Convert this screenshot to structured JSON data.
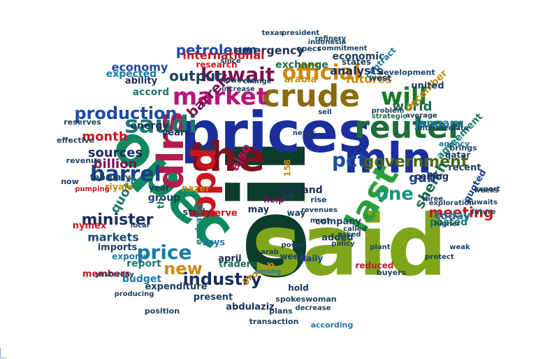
{
  "word_cloud": {
    "words": [
      {
        "text": "oil",
        "color": "#0b3d2a"
      },
      {
        "text": "said",
        "color": "#7fa61a"
      },
      {
        "text": "prices",
        "color": "#1a2e9c"
      },
      {
        "text": "opec",
        "color": "#0f8a5f"
      },
      {
        "text": "mln",
        "color": "#1a2e9c"
      },
      {
        "text": "the",
        "color": "#7a1020"
      },
      {
        "text": "crude",
        "color": "#8a6a10"
      },
      {
        "text": "reuter",
        "color": "#1f6b3a"
      },
      {
        "text": "dlrs",
        "color": "#b51a4c"
      },
      {
        "text": "last",
        "color": "#2aa03a"
      },
      {
        "text": "bpd",
        "color": "#c9151e"
      },
      {
        "text": "market",
        "color": "#b5167a"
      },
      {
        "text": "saudi",
        "color": "#1a7a6e"
      },
      {
        "text": "will",
        "color": "#1a7a2a"
      },
      {
        "text": "official",
        "color": "#c98a10"
      },
      {
        "text": "kuwait",
        "color": "#7a1050"
      },
      {
        "text": "barrel",
        "color": "#1a3f8a"
      },
      {
        "text": "production",
        "color": "#1a4aa6"
      },
      {
        "text": "one",
        "color": "#0f9a7a"
      },
      {
        "text": "pct",
        "color": "#1a4aa6"
      },
      {
        "text": "government",
        "color": "#4a6a10"
      },
      {
        "text": "price",
        "color": "#1a7aa6"
      },
      {
        "text": "new",
        "color": "#c98a10"
      },
      {
        "text": "barrels",
        "color": "#7a1050"
      },
      {
        "text": "minister",
        "color": "#1a2e5c"
      },
      {
        "text": "industry",
        "color": "#1a2e5c"
      },
      {
        "text": "petroleum",
        "color": "#1a4aa6"
      },
      {
        "text": "also",
        "color": "#a61a5a"
      },
      {
        "text": "meeting",
        "color": "#c9151e"
      },
      {
        "text": "sheikh",
        "color": "#1a6a4a"
      },
      {
        "text": "output",
        "color": "#1a3f5c"
      },
      {
        "text": "month",
        "color": "#c9151e"
      },
      {
        "text": "billion",
        "color": "#7a1050"
      },
      {
        "text": "sources",
        "color": "#1a2e5c"
      },
      {
        "text": "quota",
        "color": "#1a7a6e"
      },
      {
        "text": "today",
        "color": "#1a7aa6"
      },
      {
        "text": "markets",
        "color": "#1a4a6e"
      },
      {
        "text": "world",
        "color": "#1a6a4a"
      },
      {
        "text": "january",
        "color": "#1a7aa6"
      },
      {
        "text": "gulf",
        "color": "#1a3f8a"
      },
      {
        "text": "economy",
        "color": "#1a4aa6"
      },
      {
        "text": "futures",
        "color": "#c98a10"
      },
      {
        "text": "analysts",
        "color": "#1a2e5c"
      },
      {
        "text": "emergency",
        "color": "#1a2e5c"
      },
      {
        "text": "international",
        "color": "#c9151e"
      },
      {
        "text": "december",
        "color": "#c98a10"
      },
      {
        "text": "posted",
        "color": "#1a7a6e"
      },
      {
        "text": "report",
        "color": "#1a7a6e"
      },
      {
        "text": "group",
        "color": "#1a3f5c"
      },
      {
        "text": "budget",
        "color": "#1a7aa6"
      },
      {
        "text": "agreement",
        "color": "#1a7a6e"
      },
      {
        "text": "demand",
        "color": "#1a2e5c"
      },
      {
        "text": "nazer",
        "color": "#c98a10"
      },
      {
        "text": "traders",
        "color": "#1a6a4a"
      },
      {
        "text": "present",
        "color": "#1a3f5c"
      },
      {
        "text": "growth",
        "color": "#c98a10"
      },
      {
        "text": "april",
        "color": "#1a2e5c"
      },
      {
        "text": "abdulaziz",
        "color": "#1a2e5c"
      },
      {
        "text": "economic",
        "color": "#1a3f5c"
      },
      {
        "text": "energy",
        "color": "#1a2e5c"
      },
      {
        "text": "accord",
        "color": "#1a7a6e"
      },
      {
        "text": "expected",
        "color": "#1a7aa6"
      },
      {
        "text": "imports",
        "color": "#1a3f5c"
      },
      {
        "text": "members",
        "color": "#c9151e"
      },
      {
        "text": "exchange",
        "color": "#1a6a4a"
      },
      {
        "text": "years",
        "color": "#1a2e5c"
      },
      {
        "text": "ability",
        "color": "#1a2e5c"
      },
      {
        "text": "quoted",
        "color": "#1a3f8a"
      },
      {
        "text": "recent",
        "color": "#1a3f5c"
      },
      {
        "text": "united",
        "color": "#1a3f5c"
      },
      {
        "text": "arabia",
        "color": "#c98a10"
      },
      {
        "text": "research",
        "color": "#c9151e"
      },
      {
        "text": "exports",
        "color": "#1a7aa6"
      },
      {
        "text": "nymex",
        "color": "#c9151e"
      },
      {
        "text": "riyals",
        "color": "#c98a10"
      },
      {
        "text": "study",
        "color": "#1a3f5c"
      },
      {
        "text": "reserve",
        "color": "#c9151e"
      },
      {
        "text": "week",
        "color": "#1a3f5c"
      },
      {
        "text": "daily",
        "color": "#1a3f8a"
      },
      {
        "text": "added",
        "color": "#1a3f5c"
      },
      {
        "text": "company",
        "color": "#1a3f5c"
      },
      {
        "text": "hold",
        "color": "#1a2e5c"
      },
      {
        "text": "ceiling",
        "color": "#1a2e5c"
      },
      {
        "text": "expenditure",
        "color": "#1a3f5c"
      },
      {
        "text": "qatar",
        "color": "#1a3f5c"
      },
      {
        "text": "february",
        "color": "#1a3f5c"
      },
      {
        "text": "emirates",
        "color": "#1a7a6e"
      },
      {
        "text": "says",
        "color": "#1a7aa6"
      },
      {
        "text": "may",
        "color": "#1a2e5c"
      },
      {
        "text": "but",
        "color": "#1a3f5c"
      },
      {
        "text": "help",
        "color": "#7a1050"
      },
      {
        "text": "they",
        "color": "#1a7a6e"
      },
      {
        "text": "ali",
        "color": "#1a3f5c"
      },
      {
        "text": "year",
        "color": "#1a3f5c"
      },
      {
        "text": "158",
        "color": "#c98a10"
      },
      {
        "text": "way",
        "color": "#1a3f5c"
      },
      {
        "text": "rise",
        "color": "#1a3f5c"
      },
      {
        "text": "states",
        "color": "#1a3f5c"
      },
      {
        "text": "west",
        "color": "#1a3f5c"
      },
      {
        "text": "development",
        "color": "#1a3f5c"
      },
      {
        "text": "contract",
        "color": "#1a7aa6"
      },
      {
        "text": "agency",
        "color": "#1a7aa6"
      },
      {
        "text": "brings",
        "color": "#1a3f5c"
      },
      {
        "text": "revenue",
        "color": "#1a3f5c"
      },
      {
        "text": "reserves",
        "color": "#1a3f5c"
      },
      {
        "text": "effective",
        "color": "#1a3f5c"
      },
      {
        "text": "reduced",
        "color": "#c9151e"
      },
      {
        "text": "plans",
        "color": "#1a3f5c"
      },
      {
        "text": "transaction",
        "color": "#1a3f5c"
      },
      {
        "text": "spokeswoman",
        "color": "#1a3f5c"
      },
      {
        "text": "according",
        "color": "#1a7aa6"
      },
      {
        "text": "position",
        "color": "#1a3f5c"
      },
      {
        "text": "producing",
        "color": "#1a3f5c"
      },
      {
        "text": "power",
        "color": "#1a3f5c"
      },
      {
        "text": "buyers",
        "color": "#1a3f5c"
      },
      {
        "text": "opecs",
        "color": "#1a3f5c"
      },
      {
        "text": "exploration",
        "color": "#1a3f5c"
      },
      {
        "text": "problem",
        "color": "#1a3f5c"
      },
      {
        "text": "strategic",
        "color": "#1a6a4a"
      },
      {
        "text": "change",
        "color": "#1a3f5c"
      },
      {
        "text": "texas",
        "color": "#1a3f5c"
      },
      {
        "text": "president",
        "color": "#1a3f5c"
      },
      {
        "text": "refinery",
        "color": "#1a3f5c"
      },
      {
        "text": "indonesia",
        "color": "#1a3f5c"
      },
      {
        "text": "commitment",
        "color": "#1a3f5c"
      },
      {
        "text": "however",
        "color": "#1a3f5c"
      },
      {
        "text": "increase",
        "color": "#1a3f5c"
      },
      {
        "text": "among",
        "color": "#1a7aa6"
      },
      {
        "text": "arab",
        "color": "#1a3f5c"
      },
      {
        "text": "now",
        "color": "#1a3f5c"
      },
      {
        "text": "pumping",
        "color": "#c9151e"
      },
      {
        "text": "revenues",
        "color": "#1a3f5c"
      },
      {
        "text": "weak",
        "color": "#1a3f5c"
      },
      {
        "text": "protect",
        "color": "#1a3f5c"
      },
      {
        "text": "export",
        "color": "#1a3f5c"
      },
      {
        "text": "kuwaits",
        "color": "#1a3f5c"
      },
      {
        "text": "decrease",
        "color": "#1a3f5c"
      },
      {
        "text": "intermediate",
        "color": "#1a3f5c"
      },
      {
        "text": "local",
        "color": "#1a3f5c"
      },
      {
        "text": "never",
        "color": "#1a3f5c"
      },
      {
        "text": "sell",
        "color": "#1a3f5c"
      },
      {
        "text": "since",
        "color": "#1a3f5c"
      },
      {
        "text": "average",
        "color": "#1a3f5c"
      },
      {
        "text": "yesterday",
        "color": "#1a3f5c"
      },
      {
        "text": "weeks",
        "color": "#1a3f5c"
      },
      {
        "text": "three",
        "color": "#1a3f5c"
      },
      {
        "text": "must",
        "color": "#1a3f5c"
      },
      {
        "text": "asked",
        "color": "#1a3f5c"
      },
      {
        "text": "called",
        "color": "#1a3f5c"
      },
      {
        "text": "policy",
        "color": "#1a3f5c"
      },
      {
        "text": "plant",
        "color": "#1a3f5c"
      },
      {
        "text": "higher",
        "color": "#1a3f5c"
      },
      {
        "text": "future",
        "color": "#1a3f5c"
      }
    ]
  }
}
